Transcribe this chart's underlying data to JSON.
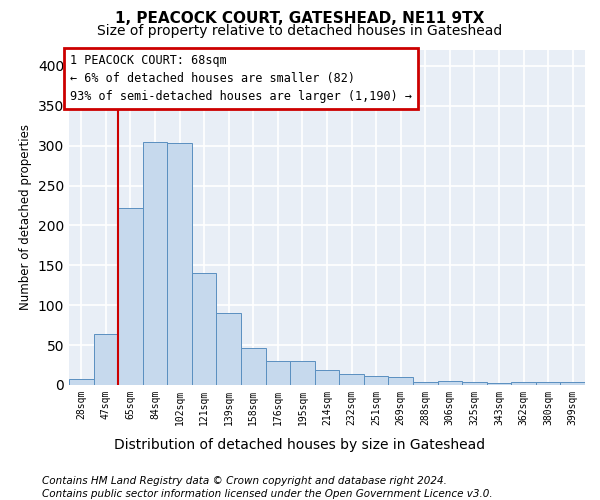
{
  "title": "1, PEACOCK COURT, GATESHEAD, NE11 9TX",
  "subtitle": "Size of property relative to detached houses in Gateshead",
  "xlabel": "Distribution of detached houses by size in Gateshead",
  "ylabel": "Number of detached properties",
  "footer_line1": "Contains HM Land Registry data © Crown copyright and database right 2024.",
  "footer_line2": "Contains public sector information licensed under the Open Government Licence v3.0.",
  "categories": [
    "28sqm",
    "47sqm",
    "65sqm",
    "84sqm",
    "102sqm",
    "121sqm",
    "139sqm",
    "158sqm",
    "176sqm",
    "195sqm",
    "214sqm",
    "232sqm",
    "251sqm",
    "269sqm",
    "288sqm",
    "306sqm",
    "325sqm",
    "343sqm",
    "362sqm",
    "380sqm",
    "399sqm"
  ],
  "values": [
    8,
    64,
    222,
    305,
    303,
    140,
    90,
    47,
    30,
    30,
    19,
    14,
    11,
    10,
    4,
    5,
    4,
    3,
    4,
    4,
    4
  ],
  "bar_color": "#c6d9ed",
  "bar_edge_color": "#5a8fc0",
  "vline_color": "#cc0000",
  "vline_x_index": 2,
  "annotation_line1": "1 PEACOCK COURT: 68sqm",
  "annotation_line2": "← 6% of detached houses are smaller (82)",
  "annotation_line3": "93% of semi-detached houses are larger (1,190) →",
  "annotation_box_facecolor": "white",
  "annotation_box_edgecolor": "#cc0000",
  "ylim": [
    0,
    420
  ],
  "yticks": [
    0,
    50,
    100,
    150,
    200,
    250,
    300,
    350,
    400
  ],
  "background_color": "#e8eef6",
  "grid_color": "#ffffff",
  "title_fontsize": 11,
  "subtitle_fontsize": 10,
  "xlabel_fontsize": 10,
  "ylabel_fontsize": 8.5,
  "tick_fontsize": 7,
  "annotation_fontsize": 8.5,
  "footer_fontsize": 7.5
}
